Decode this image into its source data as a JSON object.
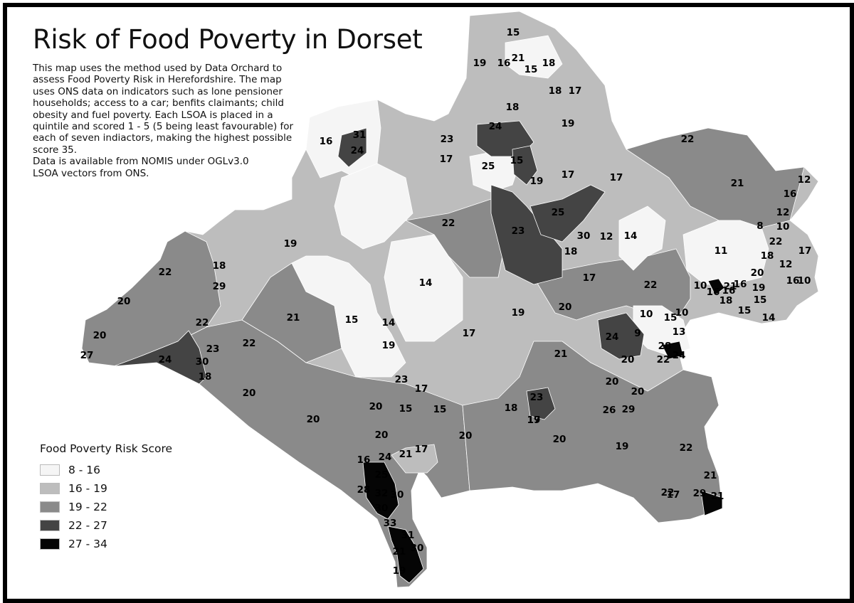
{
  "title": "Risk of Food Poverty in Dorset",
  "description": [
    "This map uses the method used by Data Orchard to",
    "assess Food Poverty Risk in Herefordshire. The map",
    "uses ONS data on indicators such as lone pensioner",
    "households; access to a car; benfits claimants; child",
    "obesity and fuel poverty. Each LSOA is placed in a",
    "quintile and scored 1 - 5 (5 being least favourable) for",
    "each of seven indiactors, making the highest possible",
    "score 35.",
    "Data is available from NOMIS under OGLv3.0",
    "LSOA vectors from ONS."
  ],
  "legend": {
    "title": "Food Poverty Risk Score",
    "classes": [
      {
        "label": "8 - 16",
        "color": "#f5f5f5"
      },
      {
        "label": "16 - 19",
        "color": "#bdbdbd"
      },
      {
        "label": "19 - 22",
        "color": "#8a8a8a"
      },
      {
        "label": "22 - 27",
        "color": "#444444"
      },
      {
        "label": "27 - 34",
        "color": "#050505"
      }
    ]
  },
  "map_labels": [
    "15",
    "19",
    "16",
    "21",
    "15",
    "18",
    "18",
    "17",
    "18",
    "19",
    "16",
    "31",
    "24",
    "23",
    "17",
    "24",
    "15",
    "25",
    "19",
    "17",
    "17",
    "22",
    "21",
    "12",
    "16",
    "12",
    "8",
    "10",
    "22",
    "17",
    "11",
    "18",
    "12",
    "16",
    "20",
    "10",
    "16",
    "19",
    "15",
    "10",
    "18",
    "15",
    "14",
    "16",
    "21",
    "16",
    "22",
    "30",
    "12",
    "14",
    "18",
    "17",
    "22",
    "25",
    "23",
    "19",
    "18",
    "29",
    "22",
    "22",
    "20",
    "21",
    "15",
    "14",
    "14",
    "17",
    "19",
    "20",
    "21",
    "19",
    "10",
    "15",
    "10",
    "13",
    "9",
    "24",
    "28",
    "24",
    "20",
    "22",
    "20",
    "20",
    "26",
    "29",
    "23",
    "19",
    "20",
    "22",
    "18",
    "17",
    "19",
    "15",
    "20",
    "18",
    "20",
    "22",
    "24",
    "30",
    "23",
    "27",
    "20",
    "20",
    "20",
    "20",
    "16",
    "24",
    "15",
    "17",
    "23",
    "17",
    "25",
    "21",
    "28",
    "32",
    "30",
    "30",
    "33",
    "31",
    "30",
    "21",
    "19",
    "17",
    "22",
    "21",
    "29",
    "21"
  ]
}
